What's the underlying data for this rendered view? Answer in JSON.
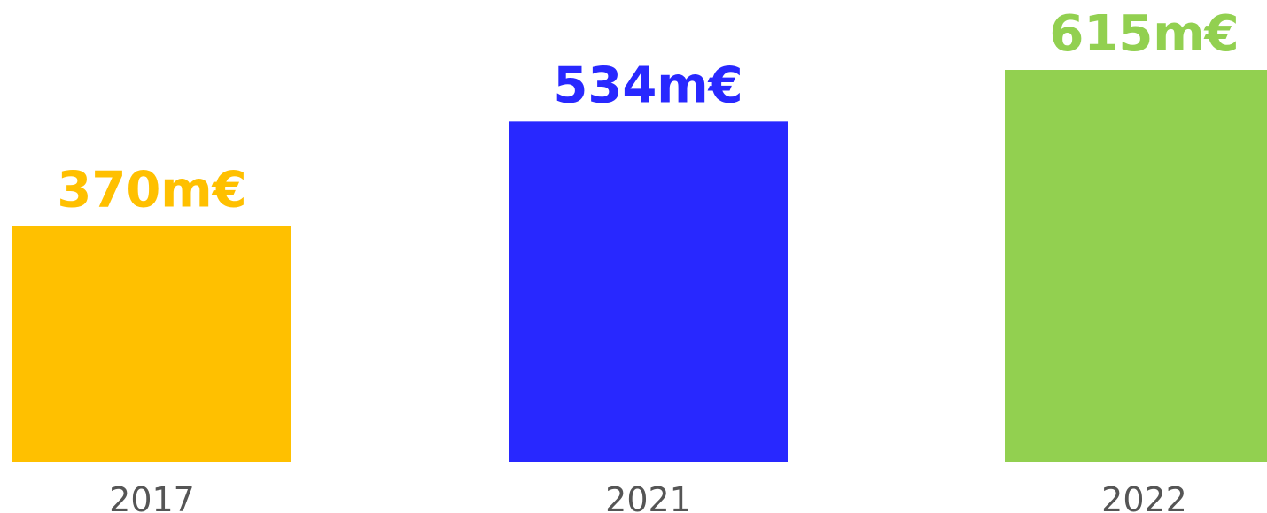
{
  "chart_data": {
    "type": "bar",
    "categories": [
      "2017",
      "2021",
      "2022"
    ],
    "values": [
      370,
      534,
      615
    ],
    "value_labels": [
      "370m€",
      "534m€",
      "615m€"
    ],
    "colors": [
      "#ffc000",
      "#2828ff",
      "#92d050"
    ],
    "tick_label_color": "#555555",
    "ylim": [
      0,
      615
    ],
    "grid": false,
    "legend": "none"
  }
}
